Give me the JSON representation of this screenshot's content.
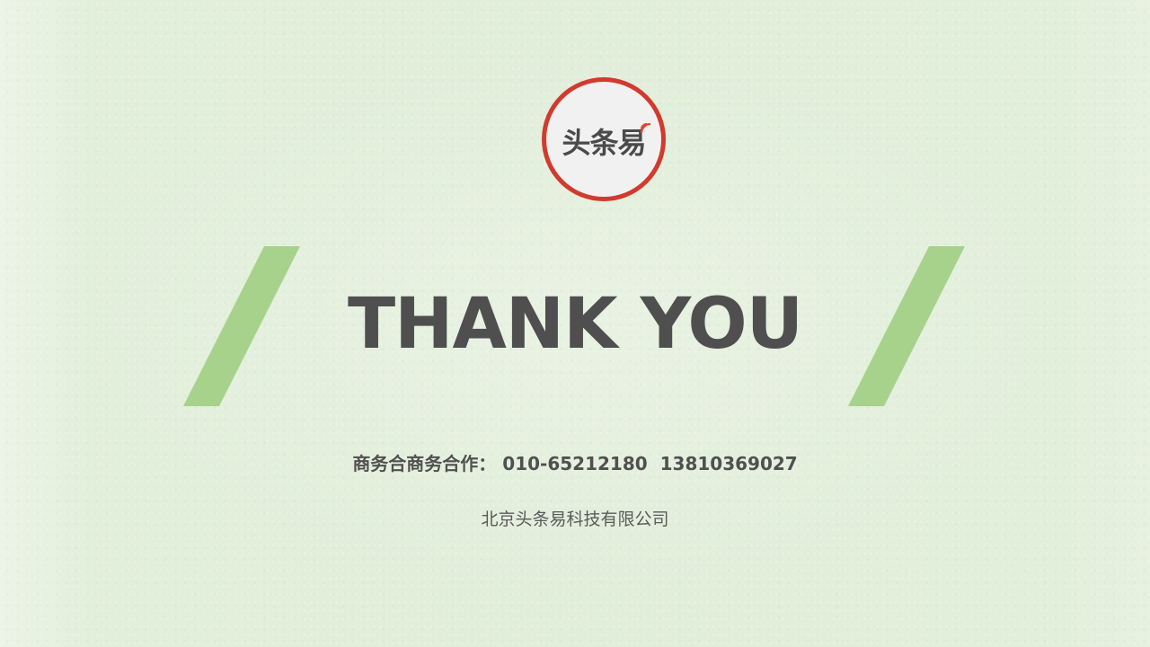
{
  "logo": {
    "text": "头条易",
    "ring_color": "#d23a2e",
    "accent_color": "#e0472b"
  },
  "accent_color": "#a7d28c",
  "title": "THANK YOU",
  "contact": {
    "label": "商务合商务合作：",
    "phone1": "010-65212180",
    "phone2": "13810369027"
  },
  "company": "北京头条易科技有限公司"
}
